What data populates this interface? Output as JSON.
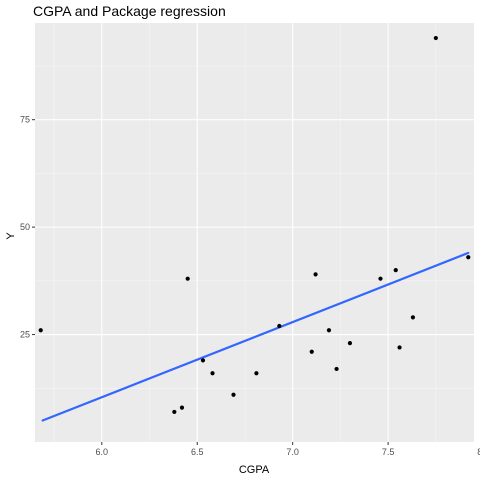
{
  "chart_data": {
    "type": "scatter",
    "title": "CGPA and Package regression",
    "xlabel": "CGPA",
    "ylabel": "Y",
    "xlim": [
      5.65,
      7.95
    ],
    "ylim": [
      0,
      97.5
    ],
    "xticks": [
      6.0,
      6.5,
      7.0,
      7.5,
      8.0
    ],
    "xtick_labels": [
      "6.0",
      "6.5",
      "7.0",
      "7.5",
      "8.0"
    ],
    "xticks_minor": [
      5.75,
      6.25,
      6.75,
      7.25,
      7.75
    ],
    "yticks": [
      25,
      50,
      75
    ],
    "ytick_labels": [
      "25",
      "50",
      "75"
    ],
    "yticks_minor": [
      12.5,
      37.5,
      62.5,
      87.5
    ],
    "grid": true,
    "points": [
      {
        "x": 5.68,
        "y": 26
      },
      {
        "x": 6.38,
        "y": 7
      },
      {
        "x": 6.42,
        "y": 8
      },
      {
        "x": 6.45,
        "y": 38
      },
      {
        "x": 6.53,
        "y": 19
      },
      {
        "x": 6.58,
        "y": 16
      },
      {
        "x": 6.69,
        "y": 11
      },
      {
        "x": 6.81,
        "y": 16
      },
      {
        "x": 6.93,
        "y": 27
      },
      {
        "x": 7.1,
        "y": 21
      },
      {
        "x": 7.12,
        "y": 39
      },
      {
        "x": 7.19,
        "y": 26
      },
      {
        "x": 7.23,
        "y": 17
      },
      {
        "x": 7.3,
        "y": 23
      },
      {
        "x": 7.46,
        "y": 38
      },
      {
        "x": 7.54,
        "y": 40
      },
      {
        "x": 7.56,
        "y": 22
      },
      {
        "x": 7.63,
        "y": 29
      },
      {
        "x": 7.75,
        "y": 94
      },
      {
        "x": 7.92,
        "y": 43
      }
    ],
    "regression_line": {
      "x": [
        5.69,
        7.92
      ],
      "y": [
        5,
        44
      ]
    },
    "colors": {
      "panel": "#ebebeb",
      "grid_major": "#ffffff",
      "point": "#000000",
      "line": "#3366ff"
    }
  }
}
